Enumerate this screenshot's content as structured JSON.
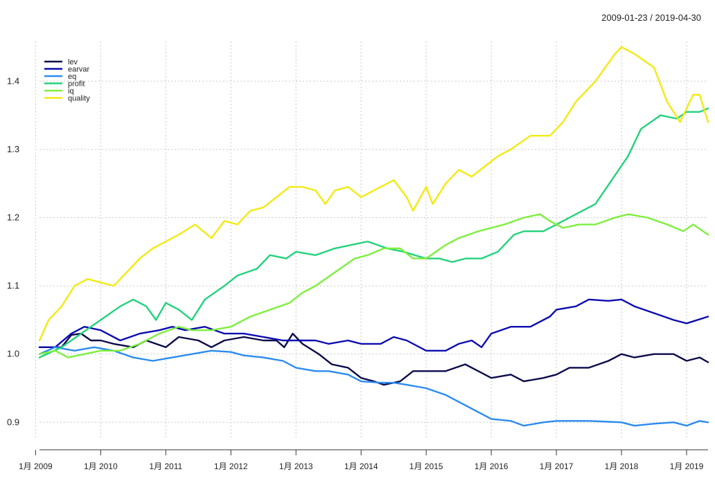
{
  "period_label": "2009-01-23 / 2019-04-30",
  "chart_data": {
    "type": "line",
    "title": "",
    "xlabel": "",
    "ylabel": "",
    "xlim": [
      2009.06,
      2019.33
    ],
    "ylim": [
      0.88,
      1.45
    ],
    "grid": true,
    "legend_position": "top-left",
    "x_ticks": [
      {
        "value": 2009,
        "label": "1月 2009"
      },
      {
        "value": 2010,
        "label": "1月 2010"
      },
      {
        "value": 2011,
        "label": "1月 2011"
      },
      {
        "value": 2012,
        "label": "1月 2012"
      },
      {
        "value": 2013,
        "label": "1月 2013"
      },
      {
        "value": 2014,
        "label": "1月 2014"
      },
      {
        "value": 2015,
        "label": "1月 2015"
      },
      {
        "value": 2016,
        "label": "1月 2016"
      },
      {
        "value": 2017,
        "label": "1月 2017"
      },
      {
        "value": 2018,
        "label": "1月 2018"
      },
      {
        "value": 2019,
        "label": "1月 2019"
      }
    ],
    "y_ticks": [
      {
        "value": 0.9,
        "label": "0.9"
      },
      {
        "value": 1.0,
        "label": "1.0"
      },
      {
        "value": 1.1,
        "label": "1.1"
      },
      {
        "value": 1.2,
        "label": "1.2"
      },
      {
        "value": 1.3,
        "label": "1.3"
      },
      {
        "value": 1.4,
        "label": "1.4"
      }
    ],
    "series": [
      {
        "name": "lev",
        "color": "#0a0a4a",
        "x": [
          2009.06,
          2009.4,
          2009.55,
          2009.7,
          2009.85,
          2010.0,
          2010.2,
          2010.5,
          2010.7,
          2011.0,
          2011.2,
          2011.5,
          2011.7,
          2011.9,
          2012.2,
          2012.5,
          2012.7,
          2012.82,
          2012.95,
          2013.0,
          2013.1,
          2013.35,
          2013.55,
          2013.8,
          2014.0,
          2014.2,
          2014.35,
          2014.6,
          2014.8,
          2015.0,
          2015.3,
          2015.6,
          2015.8,
          2016.0,
          2016.3,
          2016.5,
          2016.8,
          2017.0,
          2017.2,
          2017.5,
          2017.8,
          2018.0,
          2018.2,
          2018.5,
          2018.8,
          2019.0,
          2019.2,
          2019.33
        ],
        "y": [
          1.01,
          1.01,
          1.028,
          1.03,
          1.02,
          1.02,
          1.015,
          1.01,
          1.02,
          1.01,
          1.025,
          1.02,
          1.01,
          1.02,
          1.025,
          1.02,
          1.02,
          1.01,
          1.03,
          1.025,
          1.015,
          1.0,
          0.985,
          0.98,
          0.965,
          0.96,
          0.955,
          0.96,
          0.975,
          0.975,
          0.975,
          0.985,
          0.975,
          0.965,
          0.97,
          0.96,
          0.965,
          0.97,
          0.98,
          0.98,
          0.99,
          1.0,
          0.995,
          1.0,
          1.0,
          0.99,
          0.995,
          0.988
        ]
      },
      {
        "name": "earvar",
        "color": "#0b0bb0",
        "x": [
          2009.06,
          2009.3,
          2009.55,
          2009.75,
          2010.0,
          2010.3,
          2010.6,
          2010.9,
          2011.1,
          2011.3,
          2011.6,
          2011.9,
          2012.2,
          2012.5,
          2012.8,
          2013.0,
          2013.3,
          2013.5,
          2013.8,
          2014.0,
          2014.3,
          2014.5,
          2014.7,
          2015.0,
          2015.3,
          2015.5,
          2015.7,
          2015.85,
          2016.0,
          2016.3,
          2016.6,
          2016.9,
          2017.0,
          2017.3,
          2017.5,
          2017.8,
          2018.0,
          2018.2,
          2018.5,
          2018.8,
          2019.0,
          2019.33
        ],
        "y": [
          1.01,
          1.01,
          1.03,
          1.04,
          1.035,
          1.02,
          1.03,
          1.035,
          1.04,
          1.035,
          1.04,
          1.03,
          1.03,
          1.025,
          1.02,
          1.02,
          1.02,
          1.015,
          1.02,
          1.015,
          1.015,
          1.025,
          1.02,
          1.005,
          1.005,
          1.015,
          1.02,
          1.01,
          1.03,
          1.04,
          1.04,
          1.055,
          1.065,
          1.07,
          1.08,
          1.078,
          1.08,
          1.07,
          1.06,
          1.05,
          1.045,
          1.055
        ]
      },
      {
        "name": "eq",
        "color": "#2a8bef",
        "x": [
          2009.06,
          2009.3,
          2009.6,
          2009.9,
          2010.2,
          2010.5,
          2010.8,
          2011.1,
          2011.4,
          2011.7,
          2012.0,
          2012.2,
          2012.5,
          2012.8,
          2013.0,
          2013.3,
          2013.5,
          2013.8,
          2014.0,
          2014.3,
          2014.5,
          2014.7,
          2015.0,
          2015.3,
          2015.5,
          2015.7,
          2016.0,
          2016.3,
          2016.5,
          2016.8,
          2017.0,
          2017.5,
          2018.0,
          2018.2,
          2018.5,
          2018.8,
          2019.0,
          2019.2,
          2019.33
        ],
        "y": [
          1.0,
          1.01,
          1.005,
          1.01,
          1.005,
          0.995,
          0.99,
          0.995,
          1.0,
          1.005,
          1.003,
          0.998,
          0.995,
          0.99,
          0.98,
          0.975,
          0.975,
          0.97,
          0.96,
          0.958,
          0.958,
          0.955,
          0.95,
          0.94,
          0.93,
          0.92,
          0.905,
          0.902,
          0.895,
          0.9,
          0.902,
          0.902,
          0.9,
          0.895,
          0.898,
          0.9,
          0.895,
          0.902,
          0.9
        ]
      },
      {
        "name": "profit",
        "color": "#22d27a",
        "x": [
          2009.06,
          2009.4,
          2009.7,
          2010.0,
          2010.3,
          2010.5,
          2010.7,
          2010.85,
          2011.0,
          2011.2,
          2011.4,
          2011.6,
          2011.9,
          2012.1,
          2012.4,
          2012.6,
          2012.85,
          2013.0,
          2013.3,
          2013.6,
          2013.85,
          2014.1,
          2014.4,
          2014.65,
          2015.0,
          2015.2,
          2015.4,
          2015.6,
          2015.85,
          2016.1,
          2016.35,
          2016.5,
          2016.8,
          2017.0,
          2017.3,
          2017.6,
          2017.85,
          2018.1,
          2018.3,
          2018.6,
          2018.85,
          2019.0,
          2019.2,
          2019.33
        ],
        "y": [
          0.995,
          1.01,
          1.03,
          1.05,
          1.07,
          1.08,
          1.07,
          1.05,
          1.075,
          1.065,
          1.05,
          1.08,
          1.1,
          1.115,
          1.125,
          1.145,
          1.14,
          1.15,
          1.145,
          1.155,
          1.16,
          1.165,
          1.155,
          1.15,
          1.14,
          1.14,
          1.135,
          1.14,
          1.14,
          1.15,
          1.175,
          1.18,
          1.18,
          1.19,
          1.205,
          1.22,
          1.255,
          1.29,
          1.33,
          1.35,
          1.345,
          1.355,
          1.355,
          1.36
        ]
      },
      {
        "name": "iq",
        "color": "#7cf03c",
        "x": [
          2009.06,
          2009.3,
          2009.5,
          2009.75,
          2010.0,
          2010.3,
          2010.6,
          2010.9,
          2011.2,
          2011.4,
          2011.7,
          2012.0,
          2012.3,
          2012.6,
          2012.9,
          2013.1,
          2013.3,
          2013.6,
          2013.9,
          2014.1,
          2014.35,
          2014.6,
          2014.8,
          2015.0,
          2015.3,
          2015.5,
          2015.8,
          2016.0,
          2016.2,
          2016.5,
          2016.75,
          2016.9,
          2017.1,
          2017.35,
          2017.6,
          2017.9,
          2018.1,
          2018.4,
          2018.7,
          2018.95,
          2019.1,
          2019.33
        ],
        "y": [
          1.0,
          1.005,
          0.995,
          1.0,
          1.005,
          1.005,
          1.015,
          1.03,
          1.04,
          1.035,
          1.035,
          1.04,
          1.055,
          1.065,
          1.075,
          1.09,
          1.1,
          1.12,
          1.14,
          1.145,
          1.155,
          1.155,
          1.14,
          1.14,
          1.16,
          1.17,
          1.18,
          1.185,
          1.19,
          1.2,
          1.205,
          1.195,
          1.185,
          1.19,
          1.19,
          1.2,
          1.205,
          1.2,
          1.19,
          1.18,
          1.19,
          1.175
        ]
      },
      {
        "name": "quality",
        "color": "#f2ea10",
        "x": [
          2009.06,
          2009.2,
          2009.4,
          2009.6,
          2009.8,
          2010.0,
          2010.2,
          2010.4,
          2010.6,
          2010.8,
          2011.0,
          2011.2,
          2011.45,
          2011.7,
          2011.9,
          2012.1,
          2012.3,
          2012.5,
          2012.7,
          2012.9,
          2013.1,
          2013.3,
          2013.45,
          2013.6,
          2013.8,
          2014.0,
          2014.2,
          2014.5,
          2014.7,
          2014.8,
          2015.0,
          2015.1,
          2015.3,
          2015.5,
          2015.7,
          2015.9,
          2016.1,
          2016.3,
          2016.6,
          2016.9,
          2017.1,
          2017.3,
          2017.6,
          2017.9,
          2018.0,
          2018.2,
          2018.5,
          2018.7,
          2018.9,
          2019.1,
          2019.2,
          2019.33
        ],
        "y": [
          1.02,
          1.05,
          1.07,
          1.1,
          1.11,
          1.105,
          1.1,
          1.12,
          1.14,
          1.155,
          1.165,
          1.175,
          1.19,
          1.17,
          1.195,
          1.19,
          1.21,
          1.215,
          1.23,
          1.245,
          1.245,
          1.24,
          1.22,
          1.24,
          1.245,
          1.23,
          1.24,
          1.255,
          1.23,
          1.21,
          1.245,
          1.22,
          1.25,
          1.27,
          1.26,
          1.275,
          1.29,
          1.3,
          1.32,
          1.32,
          1.34,
          1.37,
          1.4,
          1.44,
          1.45,
          1.44,
          1.42,
          1.37,
          1.34,
          1.38,
          1.38,
          1.34
        ]
      }
    ]
  }
}
